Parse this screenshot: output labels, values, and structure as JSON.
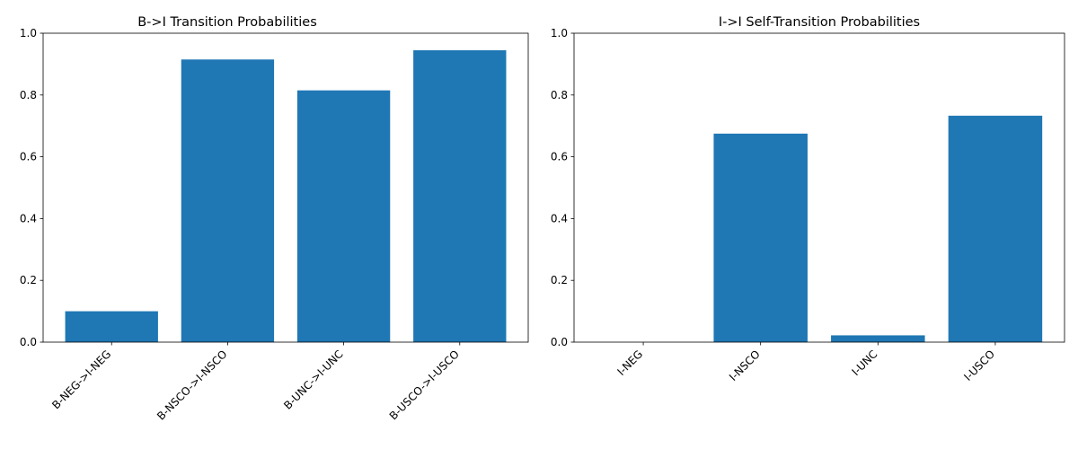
{
  "chart_data": [
    {
      "type": "bar",
      "title": "B->I Transition Probabilities",
      "xlabel": "",
      "ylabel": "",
      "categories": [
        "B-NEG->I-NEG",
        "B-NSCO->I-NSCO",
        "B-UNC->I-UNC",
        "B-USCO->I-USCO"
      ],
      "values": [
        0.1,
        0.915,
        0.815,
        0.945
      ],
      "ylim": [
        0,
        1
      ],
      "yticks": [
        "0.0",
        "0.2",
        "0.4",
        "0.6",
        "0.8",
        "1.0"
      ],
      "color": "#1f77b4",
      "grid": false
    },
    {
      "type": "bar",
      "title": "I->I Self-Transition Probabilities",
      "xlabel": "",
      "ylabel": "",
      "categories": [
        "I-NEG",
        "I-NSCO",
        "I-UNC",
        "I-USCO"
      ],
      "values": [
        0.0,
        0.675,
        0.022,
        0.733
      ],
      "ylim": [
        0,
        1
      ],
      "yticks": [
        "0.0",
        "0.2",
        "0.4",
        "0.6",
        "0.8",
        "1.0"
      ],
      "color": "#1f77b4",
      "grid": false
    }
  ]
}
